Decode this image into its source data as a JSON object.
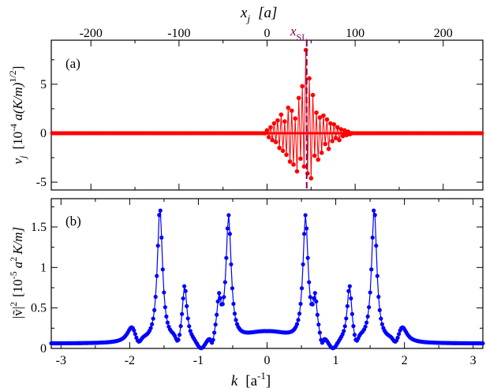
{
  "chart_data": [
    {
      "type": "line",
      "panel_label": "(a)",
      "top_axis": {
        "label_var": "x",
        "label_sub": "j",
        "label_unit": "[a]",
        "range": [
          -245,
          245
        ],
        "ticks": [
          -200,
          -100,
          0,
          100,
          200
        ],
        "tick_labels": [
          "-200",
          "-100",
          "0",
          "100",
          "200"
        ]
      },
      "ylabel": {
        "var": "v",
        "sub": "j",
        "text": "[10",
        "exp": "-4",
        "unit": "a(K/m)",
        "unit_exp": "1/2",
        "close": "]"
      },
      "ylim": [
        -5.8,
        9.5
      ],
      "yticks": [
        -5,
        0,
        5
      ],
      "ytick_labels": [
        "-5",
        "0",
        "5"
      ],
      "marker": {
        "label": "x",
        "sub": "SL",
        "x": 45,
        "color": "#800060"
      },
      "series": [
        {
          "name": "v_j",
          "color": "#ff0000",
          "x": [
            -2,
            0,
            2,
            4,
            6,
            8,
            10,
            12,
            14,
            16,
            18,
            20,
            22,
            24,
            26,
            28,
            30,
            32,
            34,
            36,
            38,
            40,
            42,
            44,
            46,
            48,
            50,
            52,
            54,
            56,
            58,
            60,
            62,
            64,
            66,
            68,
            70,
            72,
            74,
            76,
            78,
            80,
            82,
            84,
            86,
            88,
            90,
            92,
            94,
            96
          ],
          "values": [
            0.0,
            0.3,
            -0.4,
            0.6,
            -0.7,
            1.0,
            -0.9,
            1.3,
            -1.5,
            1.9,
            -1.8,
            1.2,
            -2.2,
            2.6,
            -2.9,
            2.3,
            -3.2,
            1.5,
            -3.9,
            3.6,
            -2.6,
            4.8,
            -3.4,
            8.5,
            -4.1,
            5.6,
            -4.6,
            3.9,
            -2.3,
            2.1,
            -2.7,
            1.6,
            -2.0,
            1.8,
            -1.1,
            1.4,
            -1.6,
            1.0,
            -0.8,
            0.9,
            -0.5,
            0.6,
            -0.7,
            0.4,
            -0.3,
            0.3,
            -0.2,
            0.15,
            -0.1,
            0.0
          ]
        }
      ]
    },
    {
      "type": "line",
      "panel_label": "(b)",
      "xlabel": {
        "var": "k",
        "unit": "[a",
        "unit_exp": "-1",
        "close": "]"
      },
      "xlim": [
        -3.1416,
        3.1416
      ],
      "xticks": [
        -3,
        -2,
        -1,
        0,
        1,
        2,
        3
      ],
      "xtick_labels": [
        "-3",
        "-2",
        "-1",
        "0",
        "1",
        "2",
        "3"
      ],
      "ylabel": {
        "abs": "|ṽ|",
        "abs_exp": "2",
        "text": "[10",
        "exp": "-5",
        "unit": "a",
        "unit_exp": "2",
        "tail": "K/m]"
      },
      "ylim": [
        0,
        1.85
      ],
      "yticks": [
        0,
        0.5,
        1,
        1.5
      ],
      "ytick_labels": [
        "0",
        "0.5",
        "1",
        "1.5"
      ],
      "series": [
        {
          "name": "|v(k)|^2",
          "color": "#0000ff",
          "peaks_k": [
            1.56,
            0.56,
            1.2,
            0.7,
            1.97
          ],
          "peaks_height": [
            1.7,
            1.57,
            0.72,
            0.5,
            0.22
          ],
          "baseline": 0.04,
          "dips_k": [
            0.96,
            0.8
          ],
          "center_value": 0.18
        }
      ]
    }
  ]
}
